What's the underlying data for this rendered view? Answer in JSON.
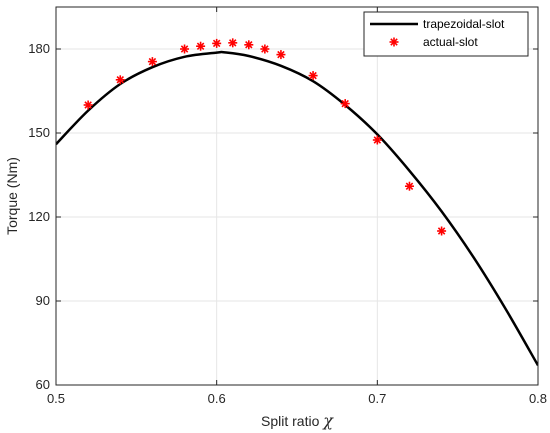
{
  "chart_data": {
    "type": "line",
    "title": "",
    "xlabel": "Split ratio",
    "xlabel_symbol": "χ",
    "ylabel": "Torque (Nm)",
    "xlim": [
      0.5,
      0.8
    ],
    "ylim": [
      60,
      195
    ],
    "xticks": [
      "0.5",
      "0.6",
      "0.7",
      "0.8"
    ],
    "xtick_values": [
      0.5,
      0.6,
      0.7,
      0.8
    ],
    "yticks": [
      "60",
      "90",
      "120",
      "150",
      "180"
    ],
    "ytick_values": [
      60,
      90,
      120,
      150,
      180
    ],
    "grid": true,
    "legend_position": "top-right",
    "series": [
      {
        "name": "trapezoidal-slot",
        "kind": "line",
        "color": "#000000",
        "x": [
          0.5,
          0.52,
          0.54,
          0.56,
          0.58,
          0.6,
          0.605,
          0.62,
          0.64,
          0.66,
          0.68,
          0.7,
          0.72,
          0.74,
          0.76,
          0.78,
          0.8
        ],
        "y": [
          146,
          158,
          167.5,
          173.5,
          177.2,
          178.7,
          178.8,
          177.5,
          174,
          168.5,
          160,
          149.5,
          136.5,
          122,
          105.5,
          87,
          67
        ]
      },
      {
        "name": "actual-slot",
        "kind": "scatter",
        "marker": "asterisk",
        "color": "#ff0000",
        "x": [
          0.52,
          0.54,
          0.56,
          0.58,
          0.59,
          0.6,
          0.61,
          0.62,
          0.63,
          0.64,
          0.66,
          0.68,
          0.7,
          0.72,
          0.74
        ],
        "y": [
          160,
          169,
          175.5,
          180,
          181,
          182,
          182.2,
          181.5,
          180,
          178,
          170.5,
          160.5,
          147.5,
          131,
          115
        ]
      }
    ]
  }
}
